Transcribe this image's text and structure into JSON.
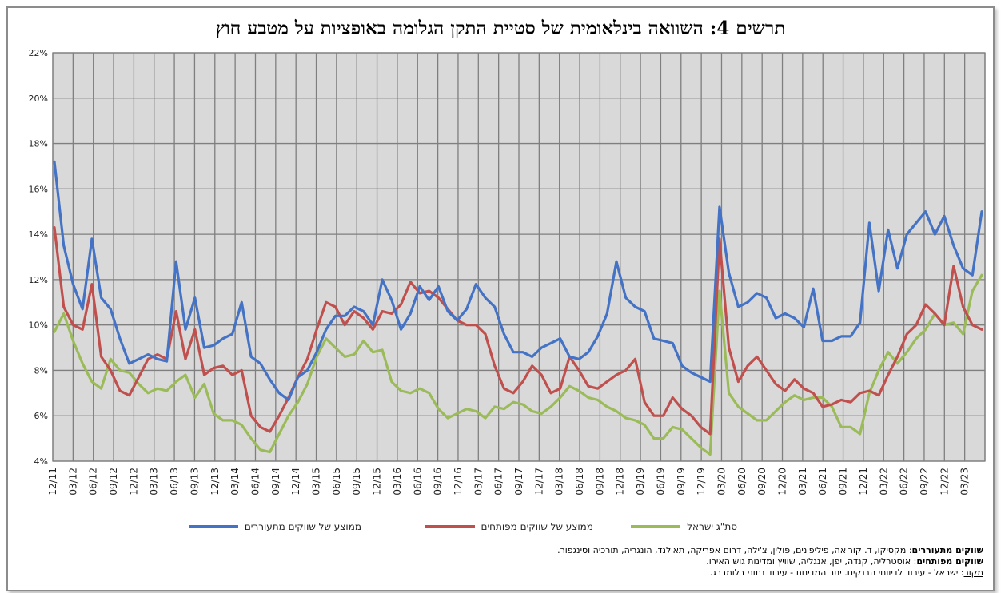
{
  "chart_data": {
    "type": "line",
    "title": "תרשים 4: השוואה בינלאומית של סטיית התקן הגלומה באופציות על מטבע חוץ",
    "ylim": [
      0.04,
      0.22
    ],
    "y_ticks": [
      "4%",
      "6%",
      "8%",
      "10%",
      "12%",
      "14%",
      "16%",
      "18%",
      "20%",
      "22%"
    ],
    "x_ticks": [
      "12/11",
      "03/12",
      "06/12",
      "09/12",
      "12/12",
      "03/13",
      "06/13",
      "09/13",
      "12/13",
      "03/14",
      "06/14",
      "09/14",
      "12/14",
      "03/15",
      "06/15",
      "09/15",
      "12/15",
      "03/16",
      "06/16",
      "09/16",
      "12/16",
      "03/17",
      "06/17",
      "09/17",
      "12/17",
      "03/18",
      "06/18",
      "09/18",
      "12/18",
      "03/19",
      "06/19",
      "09/19",
      "12/19",
      "03/20",
      "06/20",
      "09/20",
      "12/20",
      "03/21",
      "06/21",
      "09/21",
      "12/21",
      "03/22",
      "06/22",
      "09/22",
      "12/22",
      "03/23"
    ],
    "grid": true,
    "legend_position": "bottom",
    "series": [
      {
        "name": "ממוצע של שווקים מתעוררים",
        "color": "#4472c4",
        "values": [
          0.172,
          0.135,
          0.118,
          0.107,
          0.138,
          0.112,
          0.107,
          0.094,
          0.083,
          0.085,
          0.087,
          0.085,
          0.084,
          0.128,
          0.098,
          0.112,
          0.09,
          0.091,
          0.094,
          0.096,
          0.11,
          0.086,
          0.083,
          0.076,
          0.07,
          0.067,
          0.077,
          0.08,
          0.088,
          0.098,
          0.104,
          0.104,
          0.108,
          0.106,
          0.1,
          0.12,
          0.111,
          0.098,
          0.105,
          0.117,
          0.111,
          0.117,
          0.106,
          0.102,
          0.107,
          0.118,
          0.112,
          0.108,
          0.096,
          0.088,
          0.088,
          0.086,
          0.09,
          0.092,
          0.094,
          0.086,
          0.085,
          0.088,
          0.095,
          0.105,
          0.128,
          0.112,
          0.108,
          0.106,
          0.094,
          0.093,
          0.092,
          0.082,
          0.079,
          0.077,
          0.075,
          0.152,
          0.123,
          0.108,
          0.11,
          0.114,
          0.112,
          0.103,
          0.105,
          0.103,
          0.099,
          0.116,
          0.093,
          0.093,
          0.095,
          0.095,
          0.101,
          0.145,
          0.115,
          0.142,
          0.125,
          0.14,
          0.145,
          0.15,
          0.14,
          0.148,
          0.135,
          0.125,
          0.122,
          0.15
        ]
      },
      {
        "name": "ממוצע של שווקים מפותחים",
        "color": "#c0504d",
        "values": [
          0.143,
          0.108,
          0.1,
          0.098,
          0.118,
          0.086,
          0.08,
          0.071,
          0.069,
          0.077,
          0.085,
          0.087,
          0.085,
          0.106,
          0.085,
          0.098,
          0.078,
          0.081,
          0.082,
          0.078,
          0.08,
          0.06,
          0.055,
          0.053,
          0.06,
          0.068,
          0.077,
          0.085,
          0.098,
          0.11,
          0.108,
          0.1,
          0.106,
          0.103,
          0.098,
          0.106,
          0.105,
          0.109,
          0.119,
          0.114,
          0.115,
          0.112,
          0.107,
          0.102,
          0.1,
          0.1,
          0.096,
          0.082,
          0.072,
          0.07,
          0.075,
          0.082,
          0.078,
          0.07,
          0.072,
          0.086,
          0.08,
          0.073,
          0.072,
          0.075,
          0.078,
          0.08,
          0.085,
          0.066,
          0.06,
          0.06,
          0.068,
          0.063,
          0.06,
          0.055,
          0.052,
          0.138,
          0.09,
          0.075,
          0.082,
          0.086,
          0.08,
          0.074,
          0.071,
          0.076,
          0.072,
          0.07,
          0.064,
          0.065,
          0.067,
          0.066,
          0.07,
          0.071,
          0.069,
          0.078,
          0.086,
          0.096,
          0.1,
          0.109,
          0.105,
          0.1,
          0.126,
          0.108,
          0.1,
          0.098
        ]
      },
      {
        "name": "סת\"ג ישראל",
        "color": "#9bbb59",
        "values": [
          0.097,
          0.105,
          0.093,
          0.083,
          0.075,
          0.072,
          0.085,
          0.08,
          0.079,
          0.074,
          0.07,
          0.072,
          0.071,
          0.075,
          0.078,
          0.068,
          0.074,
          0.061,
          0.058,
          0.058,
          0.056,
          0.05,
          0.045,
          0.044,
          0.052,
          0.06,
          0.066,
          0.074,
          0.086,
          0.094,
          0.09,
          0.086,
          0.087,
          0.093,
          0.088,
          0.089,
          0.075,
          0.071,
          0.07,
          0.072,
          0.07,
          0.063,
          0.059,
          0.061,
          0.063,
          0.062,
          0.059,
          0.064,
          0.063,
          0.066,
          0.065,
          0.062,
          0.061,
          0.064,
          0.068,
          0.073,
          0.071,
          0.068,
          0.067,
          0.064,
          0.062,
          0.059,
          0.058,
          0.056,
          0.05,
          0.05,
          0.055,
          0.054,
          0.05,
          0.046,
          0.043,
          0.115,
          0.07,
          0.064,
          0.061,
          0.058,
          0.058,
          0.062,
          0.066,
          0.069,
          0.067,
          0.068,
          0.068,
          0.064,
          0.055,
          0.055,
          0.052,
          0.07,
          0.08,
          0.088,
          0.083,
          0.088,
          0.094,
          0.098,
          0.105,
          0.1,
          0.101,
          0.096,
          0.115,
          0.122
        ]
      }
    ]
  },
  "notes": {
    "emerging_label": "שווקים מתעוררים",
    "emerging_list": ": מקסיקו, ד. קוריאה, פיליפינים, פולין, צ'ילה, דרום אפריקה, תאילנד, הונגריה, תורכיה וסינגפור.",
    "developed_label": "שווקים מפותחים",
    "developed_list": ": אוסטרליה, קנדה, יפן, אנגליה, שוויץ ומדינות גוש האירו.",
    "source_label": "מקור",
    "source_text": ": ישראל - עיבוד לדיווחי הבנקים. יתר המדינות - עיבוד נתוני בלומברג."
  }
}
